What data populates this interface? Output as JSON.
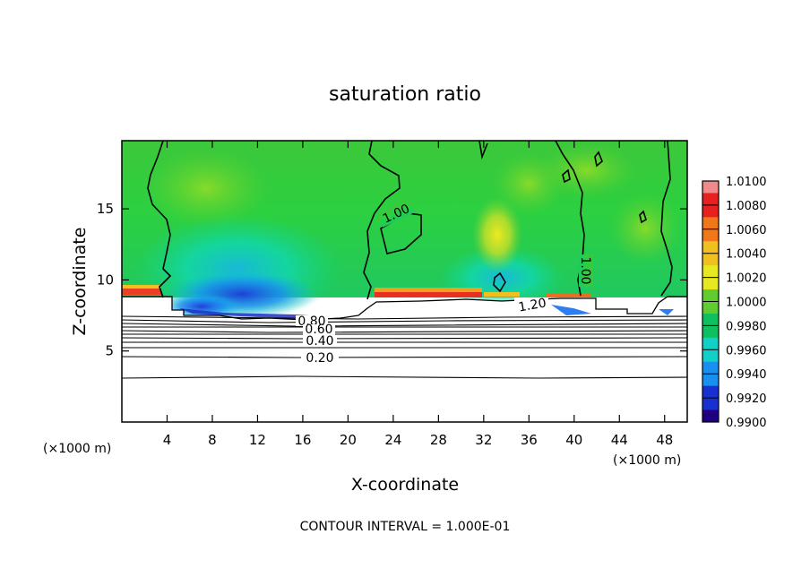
{
  "chart_data": {
    "type": "heatmap",
    "title": "saturation ratio",
    "xlabel": "X-coordinate",
    "ylabel": "Z-coordinate",
    "x_unit": "(×1000 m)",
    "xlim": [
      0,
      50
    ],
    "ylim": [
      0,
      19.8
    ],
    "x_ticks": [
      4,
      8,
      12,
      16,
      20,
      24,
      28,
      32,
      36,
      40,
      44,
      48
    ],
    "y_ticks": [
      5,
      10,
      15
    ],
    "colorbar": {
      "ticks": [
        "1.0100",
        "1.0080",
        "1.0060",
        "1.0040",
        "1.0020",
        "1.0000",
        "0.9980",
        "0.9960",
        "0.9940",
        "0.9920",
        "0.9900"
      ],
      "colors": [
        "#f08a8a",
        "#e82020",
        "#f07818",
        "#f0c020",
        "#e8e820",
        "#60cc30",
        "#10c060",
        "#10d0c8",
        "#1890f0",
        "#1830d0",
        "#200080",
        "#600090"
      ]
    },
    "contour_interval_text": "CONTOUR INTERVAL = 1.000E-01",
    "contour_labels": [
      {
        "text": "1.00",
        "x": 22.8,
        "z": 15.0
      },
      {
        "text": "1.00",
        "x": 41.0,
        "z": 10.8
      },
      {
        "text": "1.20",
        "x": 36.2,
        "z": 8.5
      },
      {
        "text": "0.80",
        "x": 16.8,
        "z": 7.1
      },
      {
        "text": "0.60",
        "x": 17.3,
        "z": 6.6
      },
      {
        "text": "0.40",
        "x": 17.3,
        "z": 5.9
      },
      {
        "text": "0.20",
        "x": 17.3,
        "z": 4.7
      }
    ],
    "contour_lines_z": [
      7.7,
      7.5,
      7.3,
      7.1,
      6.9,
      6.6,
      6.3,
      5.9,
      5.4,
      4.8,
      3.4
    ]
  }
}
